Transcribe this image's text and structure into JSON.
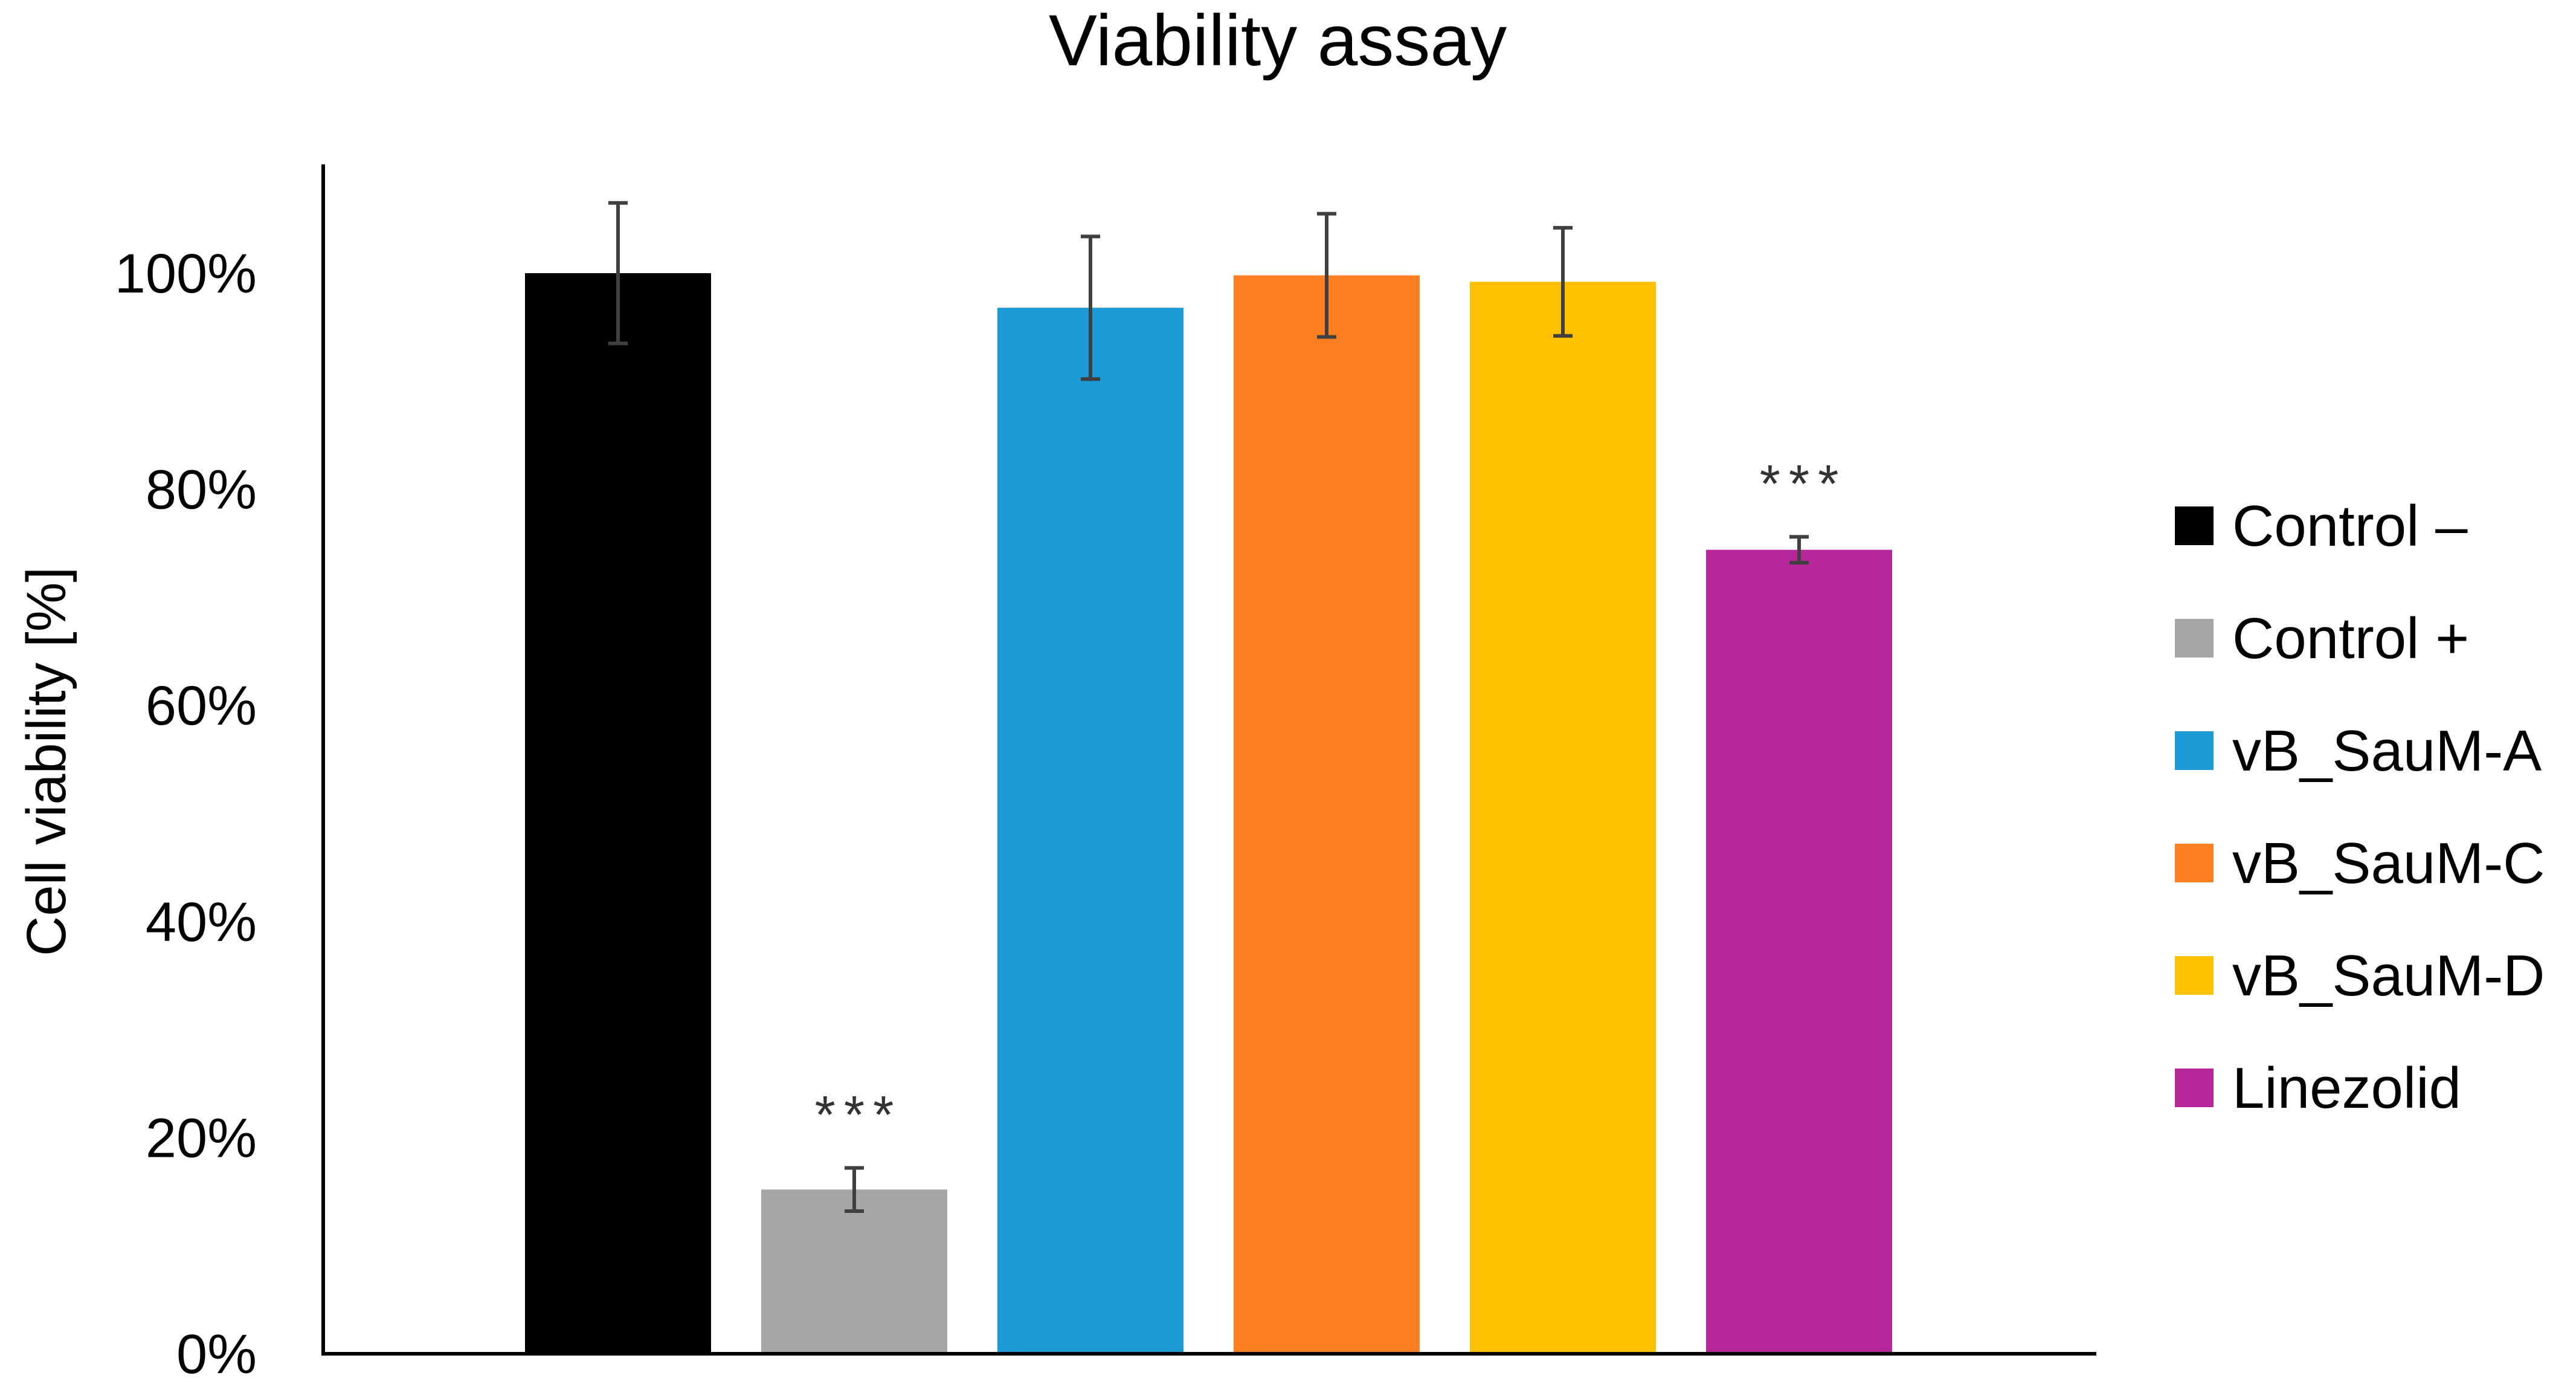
{
  "chart_data": {
    "type": "bar",
    "title": "Viability assay",
    "ylabel": "Cell viability [%]",
    "xlabel": "",
    "ylim": [
      0,
      100
    ],
    "y_ticks": [
      "0%",
      "20%",
      "40%",
      "60%",
      "80%",
      "100%"
    ],
    "categories": [
      "Control –",
      "Control +",
      "vB_SauM-A",
      "vB_SauM-C",
      "vB_SauM-D",
      "Linezolid"
    ],
    "values": [
      100,
      15.2,
      96.8,
      99.8,
      99.2,
      74.4
    ],
    "error": [
      6.5,
      2,
      6.6,
      5.7,
      5,
      1.2
    ],
    "colors": [
      "#000000",
      "#a6a6a6",
      "#1b9ad6",
      "#fd7f22",
      "#ffc000",
      "#b6279a"
    ],
    "annotations": [
      "",
      "***",
      "",
      "",
      "",
      "***"
    ],
    "legend_position": "right"
  }
}
